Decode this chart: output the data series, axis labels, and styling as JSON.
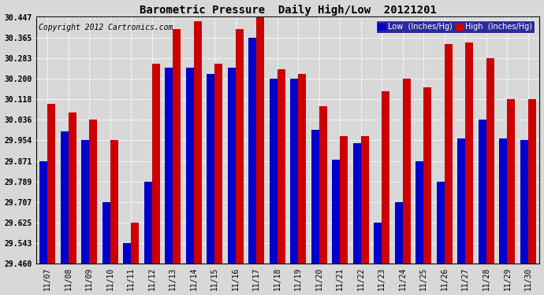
{
  "title": "Barometric Pressure  Daily High/Low  20121201",
  "copyright": "Copyright 2012 Cartronics.com",
  "dates": [
    "11/07",
    "11/08",
    "11/09",
    "11/10",
    "11/11",
    "11/12",
    "11/13",
    "11/14",
    "11/15",
    "11/16",
    "11/17",
    "11/18",
    "11/19",
    "11/20",
    "11/21",
    "11/22",
    "11/23",
    "11/24",
    "11/25",
    "11/26",
    "11/27",
    "11/28",
    "11/29",
    "11/30"
  ],
  "low_values": [
    29.871,
    29.99,
    29.954,
    29.707,
    29.543,
    29.789,
    30.245,
    30.245,
    30.22,
    30.245,
    30.365,
    30.2,
    30.2,
    29.995,
    29.876,
    29.944,
    29.625,
    29.707,
    29.871,
    29.789,
    29.96,
    30.036,
    29.96,
    29.954
  ],
  "high_values": [
    30.1,
    30.065,
    30.036,
    29.954,
    29.625,
    30.26,
    30.4,
    30.43,
    30.26,
    30.4,
    30.447,
    30.24,
    30.22,
    30.09,
    29.97,
    29.971,
    30.15,
    30.2,
    30.165,
    30.34,
    30.345,
    30.283,
    30.118,
    30.12
  ],
  "ylim_min": 29.46,
  "ylim_max": 30.447,
  "yticks": [
    29.46,
    29.543,
    29.625,
    29.707,
    29.789,
    29.871,
    29.954,
    30.036,
    30.118,
    30.2,
    30.283,
    30.365,
    30.447
  ],
  "low_color": "#0000cc",
  "high_color": "#cc0000",
  "bg_color": "#d8d8d8",
  "plot_bg_color": "#d8d8d8",
  "grid_color": "white",
  "legend_low_label": "Low  (Inches/Hg)",
  "legend_high_label": "High  (Inches/Hg)",
  "bar_width": 0.38,
  "title_fontsize": 10,
  "copyright_fontsize": 7,
  "tick_fontsize": 7,
  "legend_fontsize": 7
}
